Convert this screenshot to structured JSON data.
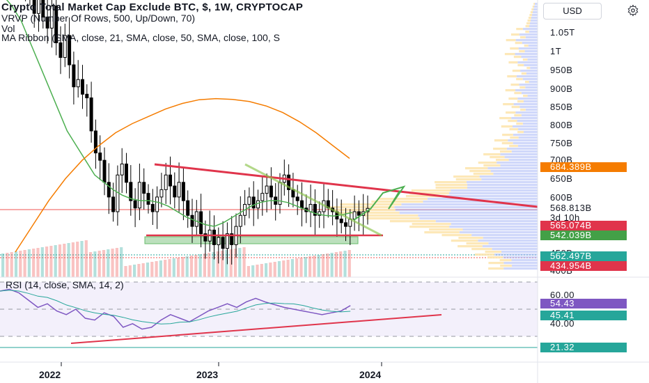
{
  "header": {
    "currency": "USD",
    "title": "Crypto Total Market Cap Exclude BTC, $, 1W, CRYPTOCAP",
    "vrvp": "VRVP (Number Of Rows, 500, Up/Down, 70)",
    "vol": "Vol",
    "ma_ribbon": "MA Ribbon (SMA, close, 21, SMA, close, 50, SMA, close, 100, S"
  },
  "rsi": {
    "legend": "RSI (14, close, SMA, 14, 2)",
    "ticks": [
      "60.00",
      "40.00"
    ],
    "rsi_label": "54.43",
    "ma_label": "45.41",
    "low_label": "21.32"
  },
  "price_axis": {
    "ticks": [
      "1.05T",
      "1T",
      "950B",
      "900B",
      "850B",
      "800B",
      "750B",
      "700B",
      "650B",
      "600B",
      "450B",
      "400B"
    ]
  },
  "price_labels": {
    "sma200": "684.389B",
    "current": "568.813B",
    "countdown": "3d 10h",
    "red_level": "565.074B",
    "green_level": "542.039B",
    "teal_level": "562.497B",
    "low_level": "434.954B"
  },
  "time_axis": {
    "ticks": [
      "2022",
      "2023",
      "2024"
    ]
  },
  "colors": {
    "up": "#26a69a",
    "down": "#ef5350",
    "candle": "#000000",
    "sma21": "#4caf50",
    "sma50": "#f57c00",
    "resistance": "#e0344b",
    "rsi": "#7e57c2",
    "rsi_ma": "#26a69a",
    "profile": "#aab8f5",
    "profile_up": "#fde6b0"
  },
  "chart_data": {
    "type": "candlestick",
    "timeframe": "1W",
    "series_weekly_close_B": [
      1230,
      1180,
      1210,
      1150,
      1100,
      1190,
      1090,
      1060,
      1120,
      1020,
      980,
      1040,
      960,
      900,
      920,
      880,
      870,
      780,
      720,
      700,
      640,
      600,
      560,
      660,
      690,
      640,
      590,
      570,
      640,
      610,
      580,
      560,
      600,
      620,
      660,
      630,
      600,
      640,
      590,
      550,
      520,
      560,
      500,
      480,
      510,
      470,
      490,
      460,
      500,
      470,
      520,
      550,
      580,
      600,
      570,
      590,
      610,
      630,
      600,
      580,
      640,
      660,
      620,
      600,
      590,
      570,
      560,
      580,
      550,
      560,
      590,
      570,
      560,
      540,
      530,
      520,
      540,
      560,
      550,
      560,
      569
    ],
    "sma_fast_B": [
      1150,
      1120,
      1080,
      1020,
      960,
      900,
      840,
      780,
      740,
      700,
      660,
      640,
      620,
      605,
      595,
      590,
      590,
      585,
      575,
      560,
      545,
      535,
      525,
      520,
      530,
      545,
      560,
      575,
      585,
      590,
      590,
      585,
      575,
      565,
      555,
      550,
      548,
      552,
      558
    ],
    "sma_slow_B": [
      450,
      520,
      590,
      650,
      700,
      740,
      775,
      800,
      820,
      840,
      855,
      865,
      868,
      866,
      860,
      848,
      830,
      805,
      775,
      740,
      705
    ],
    "resistance_line_B": [
      [
        0,
        698
      ],
      [
        1,
        589
      ]
    ],
    "rsi_values": [
      70,
      72,
      68,
      60,
      52,
      56,
      48,
      44,
      50,
      40,
      38,
      46,
      42,
      30,
      34,
      28,
      30,
      38,
      44,
      40,
      36,
      42,
      48,
      52,
      56,
      52,
      58,
      62,
      58,
      55,
      52,
      50,
      48,
      46,
      44,
      46,
      48,
      54
    ]
  }
}
